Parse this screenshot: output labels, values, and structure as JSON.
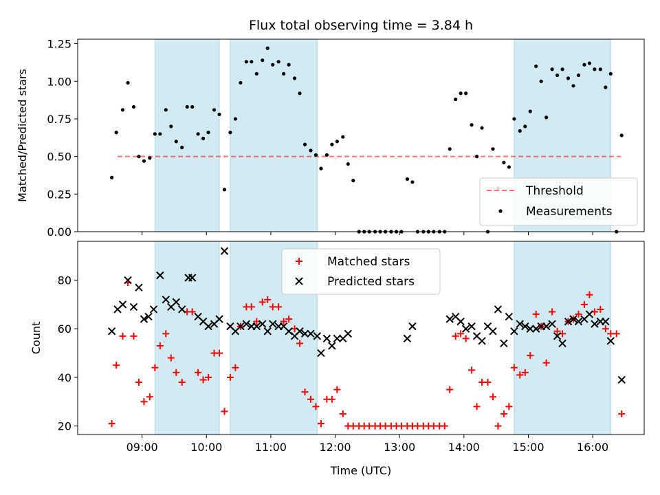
{
  "chart_data": [
    {
      "type": "scatter",
      "title": "Flux total observing time = 3.84 h",
      "ylabel": "Matched/Predicted stars",
      "ylim": [
        0,
        1.28
      ],
      "xlim_hours": [
        8.0,
        16.8
      ],
      "yticks": [
        "0.00",
        "0.25",
        "0.50",
        "0.75",
        "1.00",
        "1.25"
      ],
      "shaded_intervals_hours": [
        [
          9.2,
          10.2
        ],
        [
          10.37,
          11.72
        ],
        [
          14.78,
          16.28
        ]
      ],
      "shade_color": "#add8e6",
      "threshold": {
        "name": "Threshold",
        "y": 0.5,
        "x_range_hours": [
          8.62,
          16.44
        ],
        "color": "#ff0000",
        "linestyle": "dashed"
      },
      "series": [
        {
          "name": "Measurements",
          "color": "#000000",
          "marker": "dot",
          "x_hours": [
            8.53,
            8.6,
            8.7,
            8.78,
            8.87,
            8.95,
            9.03,
            9.12,
            9.2,
            9.28,
            9.37,
            9.45,
            9.53,
            9.62,
            9.7,
            9.78,
            9.87,
            9.95,
            10.03,
            10.12,
            10.2,
            10.28,
            10.37,
            10.45,
            10.53,
            10.62,
            10.7,
            10.78,
            10.87,
            10.95,
            11.03,
            11.12,
            11.2,
            11.28,
            11.37,
            11.45,
            11.53,
            11.62,
            11.7,
            11.78,
            11.87,
            11.95,
            12.03,
            12.12,
            12.2,
            12.28,
            12.37,
            12.45,
            12.53,
            12.62,
            12.7,
            12.78,
            12.87,
            12.95,
            13.03,
            13.12,
            13.2,
            13.28,
            13.37,
            13.45,
            13.53,
            13.62,
            13.7,
            13.78,
            13.87,
            13.95,
            14.03,
            14.12,
            14.2,
            14.28,
            14.37,
            14.45,
            14.53,
            14.62,
            14.7,
            14.78,
            14.87,
            14.95,
            15.03,
            15.12,
            15.2,
            15.28,
            15.37,
            15.45,
            15.53,
            15.62,
            15.7,
            15.78,
            15.87,
            15.95,
            16.03,
            16.12,
            16.2,
            16.28,
            16.37,
            16.45
          ],
          "y": [
            0.36,
            0.66,
            0.81,
            0.99,
            0.83,
            0.5,
            0.47,
            0.49,
            0.65,
            0.65,
            0.81,
            0.7,
            0.6,
            0.56,
            0.83,
            0.83,
            0.65,
            0.62,
            0.66,
            0.81,
            0.78,
            0.28,
            0.66,
            0.75,
            0.99,
            1.13,
            1.13,
            1.05,
            1.14,
            1.22,
            1.11,
            1.13,
            1.05,
            1.11,
            1.02,
            0.92,
            0.58,
            0.54,
            0.51,
            0.42,
            0.51,
            0.58,
            0.6,
            0.63,
            0.45,
            0.34,
            0.0,
            0.0,
            0.0,
            0.0,
            0.0,
            0.0,
            0.0,
            0.0,
            0.0,
            0.35,
            0.33,
            0.0,
            0.0,
            0.0,
            0.0,
            0.0,
            0.0,
            0.55,
            0.88,
            0.92,
            0.92,
            0.71,
            0.5,
            0.69,
            0.0,
            0.55,
            0.29,
            0.46,
            0.43,
            0.75,
            0.67,
            0.7,
            0.8,
            1.1,
            1.0,
            0.76,
            1.08,
            1.04,
            1.08,
            1.02,
            0.97,
            1.04,
            1.11,
            1.12,
            1.08,
            1.08,
            0.96,
            1.05,
            0.0,
            0.64
          ]
        }
      ],
      "legend": {
        "placement": "lower right",
        "entries": [
          "Threshold",
          "Measurements"
        ]
      }
    },
    {
      "type": "scatter",
      "xlabel": "Time (UTC)",
      "ylabel": "Count",
      "ylim": [
        16.5,
        96
      ],
      "xlim_hours": [
        8.0,
        16.8
      ],
      "xticks": [
        {
          "hour": 9,
          "label": "09:00"
        },
        {
          "hour": 10,
          "label": "10:00"
        },
        {
          "hour": 11,
          "label": "11:00"
        },
        {
          "hour": 12,
          "label": "12:00"
        },
        {
          "hour": 13,
          "label": "13:00"
        },
        {
          "hour": 14,
          "label": "14:00"
        },
        {
          "hour": 15,
          "label": "15:00"
        },
        {
          "hour": 16,
          "label": "16:00"
        }
      ],
      "yticks": [
        "20",
        "40",
        "60",
        "80"
      ],
      "shaded_intervals_hours": [
        [
          9.2,
          10.2
        ],
        [
          10.37,
          11.72
        ],
        [
          14.78,
          16.28
        ]
      ],
      "shade_color": "#add8e6",
      "series": [
        {
          "name": "Matched stars",
          "color": "#ff0000",
          "marker": "plus",
          "x_hours": [
            8.53,
            8.6,
            8.7,
            8.78,
            8.87,
            8.95,
            9.03,
            9.12,
            9.2,
            9.28,
            9.37,
            9.45,
            9.53,
            9.62,
            9.7,
            9.78,
            9.87,
            9.95,
            10.03,
            10.12,
            10.2,
            10.28,
            10.37,
            10.45,
            10.53,
            10.62,
            10.7,
            10.78,
            10.87,
            10.95,
            11.03,
            11.12,
            11.2,
            11.28,
            11.37,
            11.45,
            11.53,
            11.62,
            11.7,
            11.78,
            11.87,
            11.95,
            12.03,
            12.12,
            12.2,
            12.28,
            12.37,
            12.45,
            12.53,
            12.62,
            12.7,
            12.78,
            12.87,
            12.95,
            13.03,
            13.12,
            13.2,
            13.28,
            13.37,
            13.45,
            13.53,
            13.62,
            13.7,
            13.78,
            13.87,
            13.95,
            14.03,
            14.12,
            14.2,
            14.28,
            14.37,
            14.45,
            14.53,
            14.62,
            14.7,
            14.78,
            14.87,
            14.95,
            15.03,
            15.12,
            15.2,
            15.28,
            15.37,
            15.45,
            15.53,
            15.62,
            15.7,
            15.78,
            15.87,
            15.95,
            16.03,
            16.12,
            16.2,
            16.28,
            16.37,
            16.45
          ],
          "y": [
            21,
            45,
            57,
            79,
            57,
            38,
            30,
            32,
            44,
            53,
            58,
            48,
            42,
            38,
            67,
            67,
            42,
            39,
            40,
            50,
            50,
            26,
            40,
            44,
            61,
            69,
            69,
            63,
            71,
            72,
            69,
            69,
            63,
            64,
            60,
            54,
            34,
            31,
            28,
            21,
            31,
            31,
            35,
            25,
            20,
            20,
            20,
            20,
            20,
            20,
            20,
            20,
            20,
            20,
            20,
            20,
            20,
            20,
            20,
            20,
            20,
            20,
            20,
            35,
            57,
            58,
            56,
            43,
            28,
            38,
            38,
            32,
            20,
            25,
            28,
            44,
            41,
            42,
            49,
            66,
            61,
            46,
            67,
            59,
            58,
            63,
            64,
            66,
            70,
            74,
            67,
            68,
            60,
            58,
            58,
            25
          ]
        },
        {
          "name": "Predicted stars",
          "color": "#000000",
          "marker": "x",
          "x_hours": [
            8.53,
            8.62,
            8.7,
            8.78,
            8.87,
            8.95,
            9.03,
            9.1,
            9.18,
            9.28,
            9.37,
            9.45,
            9.53,
            9.62,
            9.72,
            9.78,
            9.87,
            9.95,
            10.03,
            10.12,
            10.2,
            10.28,
            10.37,
            10.45,
            10.53,
            10.62,
            10.7,
            10.78,
            10.87,
            10.95,
            11.03,
            11.12,
            11.2,
            11.28,
            11.37,
            11.45,
            11.53,
            11.62,
            11.72,
            11.78,
            11.87,
            11.95,
            12.03,
            12.12,
            12.2,
            13.12,
            13.2,
            13.78,
            13.87,
            13.95,
            14.03,
            14.12,
            14.2,
            14.28,
            14.37,
            14.45,
            14.53,
            14.62,
            14.7,
            14.78,
            14.87,
            14.95,
            15.03,
            15.12,
            15.2,
            15.28,
            15.37,
            15.45,
            15.53,
            15.62,
            15.7,
            15.78,
            15.87,
            15.95,
            16.03,
            16.12,
            16.2,
            16.28,
            16.45
          ],
          "y": [
            59,
            68,
            70,
            80,
            69,
            77,
            64,
            65,
            68,
            82,
            72,
            69,
            71,
            68,
            81,
            81,
            65,
            63,
            61,
            62,
            64,
            92,
            61,
            59,
            61,
            62,
            61,
            61,
            62,
            59,
            62,
            61,
            61,
            59,
            57,
            59,
            58,
            58,
            57,
            50,
            56,
            53,
            56,
            56,
            58,
            56,
            61,
            64,
            65,
            63,
            60,
            61,
            57,
            55,
            61,
            59,
            68,
            54,
            65,
            59,
            62,
            61,
            60,
            60,
            61,
            61,
            62,
            57,
            54,
            63,
            64,
            63,
            64,
            66,
            62,
            63,
            63,
            55,
            39
          ]
        }
      ],
      "legend": {
        "placement": "upper center",
        "entries": [
          "Matched stars",
          "Predicted stars"
        ]
      }
    }
  ]
}
